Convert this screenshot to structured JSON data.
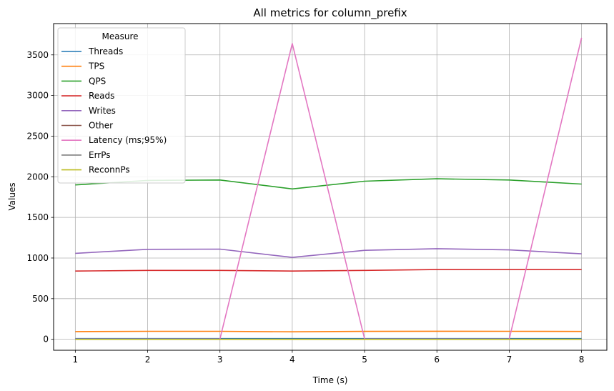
{
  "chart_data": {
    "type": "line",
    "title": "All metrics for column_prefix",
    "xlabel": "Time (s)",
    "ylabel": "Values",
    "xlim": [
      0.7,
      8.35
    ],
    "ylim": [
      -135,
      3885
    ],
    "x": [
      1,
      2,
      3,
      4,
      5,
      6,
      7,
      8
    ],
    "xticks": [
      1,
      2,
      3,
      4,
      5,
      6,
      7,
      8
    ],
    "yticks": [
      0,
      500,
      1000,
      1500,
      2000,
      2500,
      3000,
      3500
    ],
    "grid": true,
    "legend": {
      "title": "Measure",
      "position": "top-left"
    },
    "series": [
      {
        "name": "Threads",
        "color": "#1f77b4",
        "values": [
          8,
          8,
          8,
          8,
          8,
          8,
          8,
          8
        ]
      },
      {
        "name": "TPS",
        "color": "#ff7f0e",
        "values": [
          95,
          98,
          98,
          92,
          97,
          99,
          98,
          96
        ]
      },
      {
        "name": "QPS",
        "color": "#2ca02c",
        "values": [
          1900,
          1955,
          1960,
          1850,
          1945,
          1975,
          1960,
          1910
        ]
      },
      {
        "name": "Reads",
        "color": "#d62728",
        "values": [
          840,
          848,
          848,
          840,
          848,
          858,
          858,
          858
        ]
      },
      {
        "name": "Writes",
        "color": "#9467bd",
        "values": [
          1058,
          1107,
          1110,
          1008,
          1095,
          1115,
          1100,
          1052
        ]
      },
      {
        "name": "Other",
        "color": "#8c564b",
        "values": [
          0,
          0,
          0,
          0,
          0,
          0,
          0,
          0
        ]
      },
      {
        "name": "Latency (ms;95%)",
        "color": "#e377c2",
        "values": [
          3,
          3,
          3,
          3640,
          3,
          3,
          3,
          3710
        ]
      },
      {
        "name": "ErrPs",
        "color": "#7f7f7f",
        "values": [
          0,
          0,
          0,
          0,
          0,
          0,
          0,
          0
        ]
      },
      {
        "name": "ReconnPs",
        "color": "#bcbd22",
        "values": [
          0,
          0,
          0,
          0,
          0,
          0,
          0,
          0
        ]
      }
    ]
  }
}
